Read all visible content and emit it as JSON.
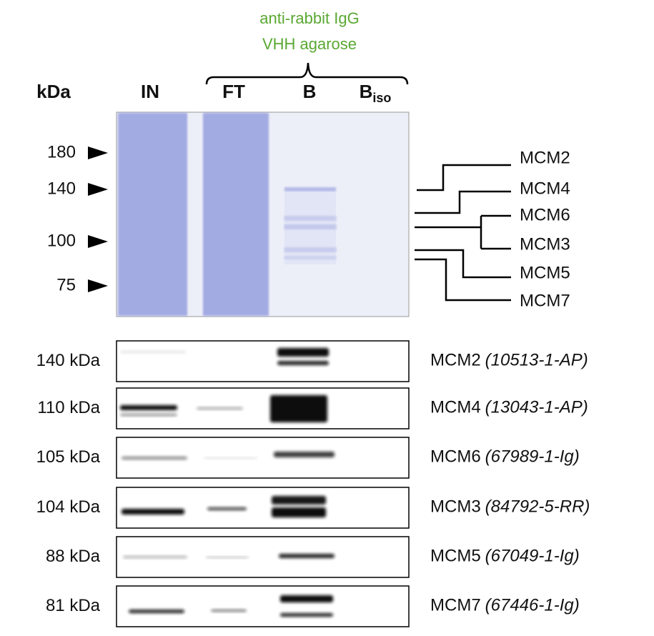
{
  "resin": {
    "line1": "anti-rabbit IgG",
    "line2": "VHH agarose"
  },
  "unit_label": "kDa",
  "lanes": [
    {
      "main": "IN"
    },
    {
      "main": "FT"
    },
    {
      "main": "B"
    },
    {
      "main": "B",
      "sub": "iso"
    }
  ],
  "markers": [
    "180",
    "140",
    "100",
    "75"
  ],
  "gel_labels": [
    "MCM2",
    "MCM4",
    "MCM6",
    "MCM3",
    "MCM5",
    "MCM7"
  ],
  "blots": [
    {
      "size": "140 kDa",
      "protein": "MCM2",
      "antibody": "(10513-1-AP)"
    },
    {
      "size": "110 kDa",
      "protein": "MCM4",
      "antibody": "(13043-1-AP)"
    },
    {
      "size": "105 kDa",
      "protein": "MCM6",
      "antibody": "(67989-1-Ig)"
    },
    {
      "size": "104 kDa",
      "protein": "MCM3",
      "antibody": "(84792-5-RR)"
    },
    {
      "size": "88 kDa",
      "protein": "MCM5",
      "antibody": "(67049-1-Ig)"
    },
    {
      "size": "81 kDa",
      "protein": "MCM7",
      "antibody": "(67446-1-Ig)"
    }
  ]
}
